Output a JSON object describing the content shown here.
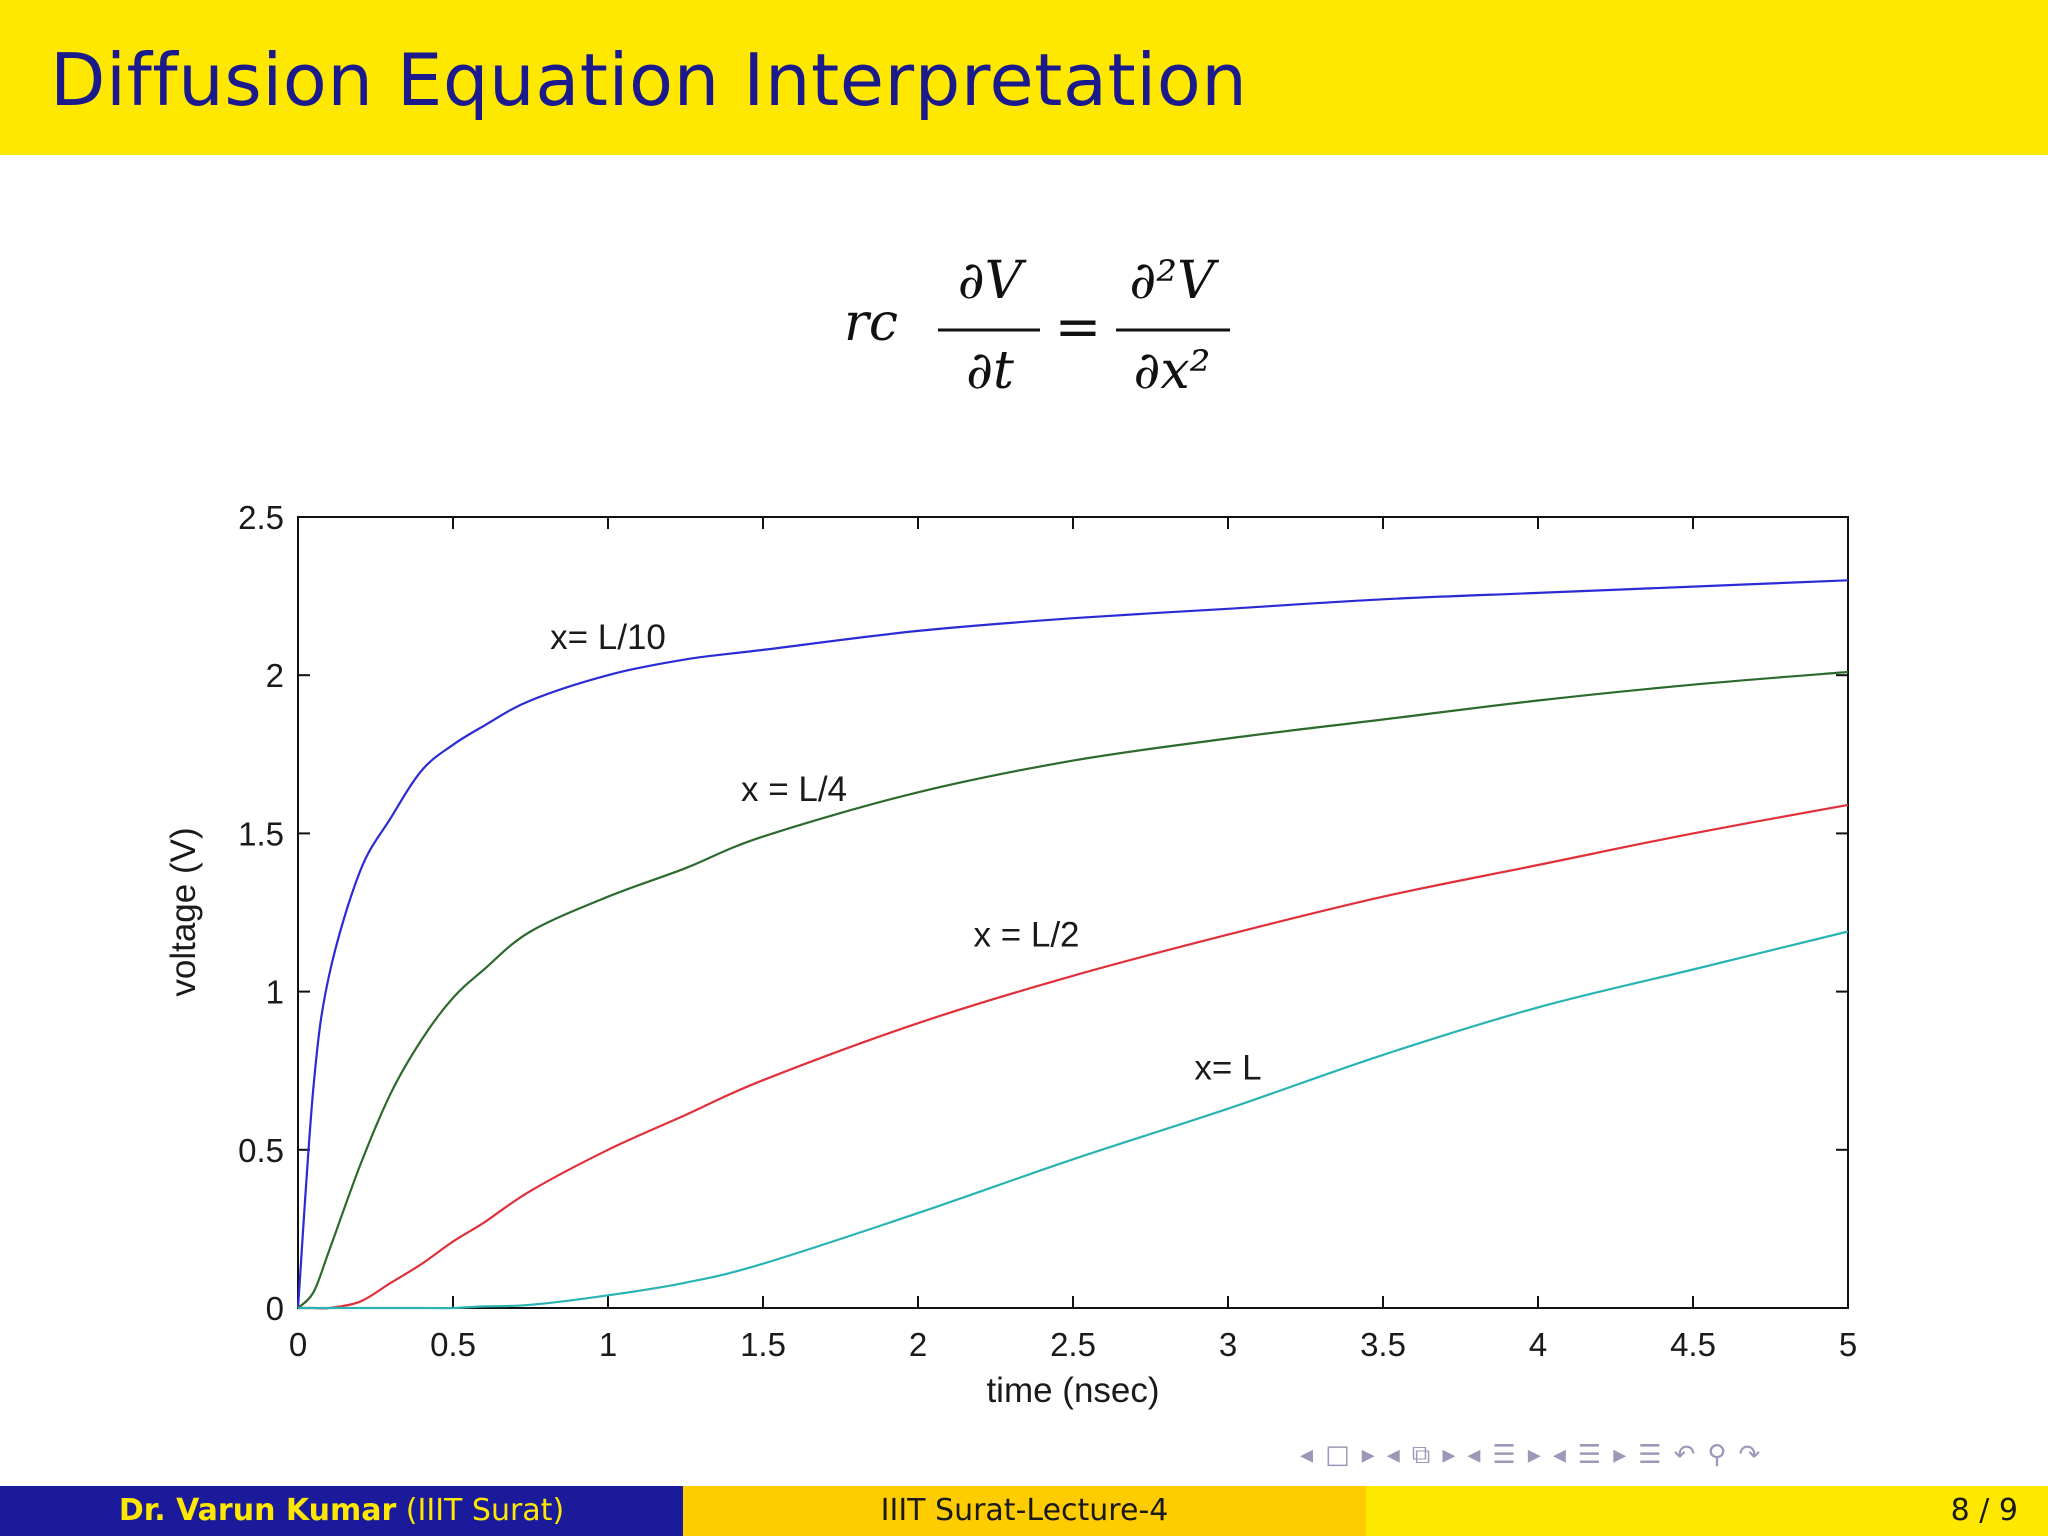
{
  "slide": {
    "title": "Diffusion Equation Interpretation"
  },
  "equation": {
    "lhs_coeff": "rc",
    "lhs_num": "∂V",
    "lhs_den": "∂t",
    "equals": "=",
    "rhs_num": "∂²V",
    "rhs_den": "∂x²"
  },
  "chart_data": {
    "type": "line",
    "xlabel": "time (nsec)",
    "ylabel": "voltage (V)",
    "xlim": [
      0,
      5
    ],
    "ylim": [
      0,
      2.5
    ],
    "xticks": [
      "0",
      "0.5",
      "1",
      "1.5",
      "2",
      "2.5",
      "3",
      "3.5",
      "4",
      "4.5",
      "5"
    ],
    "yticks": [
      "0",
      "0.5",
      "1",
      "1.5",
      "2",
      "2.5"
    ],
    "x": [
      0,
      0.05,
      0.1,
      0.2,
      0.3,
      0.4,
      0.5,
      0.6,
      0.75,
      1,
      1.25,
      1.5,
      2,
      2.5,
      3,
      3.5,
      4,
      4.5,
      5
    ],
    "series": [
      {
        "color": "#2b2bd6",
        "values": [
          0,
          0.7,
          1.05,
          1.38,
          1.55,
          1.7,
          1.78,
          1.84,
          1.92,
          2.0,
          2.05,
          2.08,
          2.14,
          2.18,
          2.21,
          2.24,
          2.26,
          2.28,
          2.3
        ]
      },
      {
        "color": "#2d6a2d",
        "values": [
          0,
          0.05,
          0.18,
          0.45,
          0.68,
          0.85,
          0.98,
          1.07,
          1.19,
          1.3,
          1.39,
          1.49,
          1.63,
          1.73,
          1.8,
          1.86,
          1.92,
          1.97,
          2.01
        ]
      },
      {
        "color": "#e0303a",
        "values": [
          0,
          0,
          0,
          0.02,
          0.08,
          0.14,
          0.21,
          0.27,
          0.37,
          0.5,
          0.61,
          0.72,
          0.9,
          1.05,
          1.18,
          1.3,
          1.4,
          1.5,
          1.59
        ]
      },
      {
        "color": "#2ab3b3",
        "values": [
          0,
          0,
          0,
          0,
          0,
          0,
          0,
          0.005,
          0.01,
          0.04,
          0.08,
          0.14,
          0.3,
          0.47,
          0.63,
          0.8,
          0.95,
          1.07,
          1.19
        ]
      }
    ],
    "annotations": [
      {
        "text": "x= L/10",
        "x": 1.0,
        "y": 2.12
      },
      {
        "text": "x = L/4",
        "x": 1.6,
        "y": 1.64
      },
      {
        "text": "x = L/2",
        "x": 2.35,
        "y": 1.18
      },
      {
        "text": "x= L",
        "x": 3.0,
        "y": 0.76
      }
    ]
  },
  "navigation": {
    "symbols": [
      "◂",
      "□",
      "▸",
      "◂",
      "⧉",
      "▸",
      "◂",
      "☰",
      "▸",
      "◂",
      "☰",
      "▸",
      "☰",
      "↶",
      "⚲",
      "↷"
    ]
  },
  "footer": {
    "author": "Dr. Varun Kumar",
    "affiliation": "(IIIT Surat)",
    "lecture": "IIIT Surat-Lecture-4",
    "page": "8 / 9"
  }
}
